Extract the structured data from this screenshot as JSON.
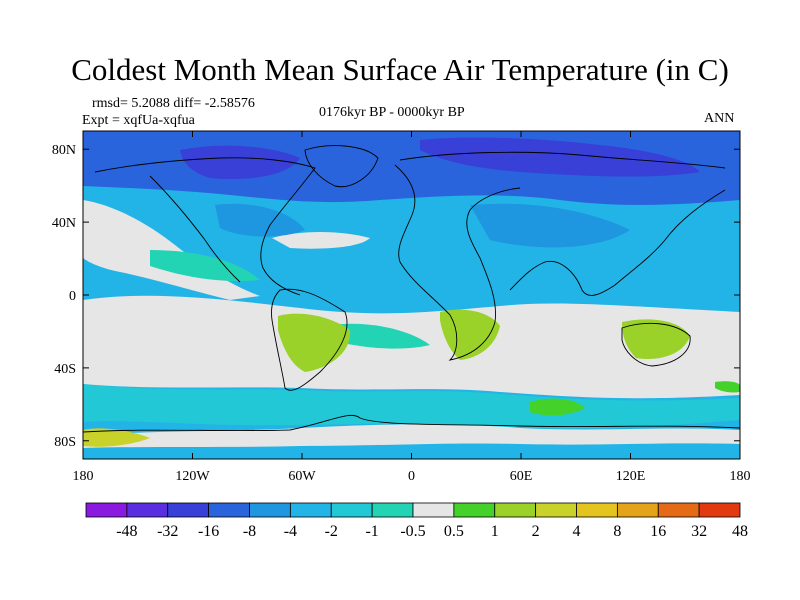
{
  "title": "Coldest Month Mean Surface Air Temperature (in C)",
  "stats": "rmsd= 5.2088  diff= -2.58576",
  "expt": "Expt = xqfUa-xqfua",
  "period": "0176kyr BP - 0000kyr BP",
  "season": "ANN",
  "lat_ticks": [
    {
      "label": "80N",
      "lat": 80
    },
    {
      "label": "40N",
      "lat": 40
    },
    {
      "label": "0",
      "lat": 0
    },
    {
      "label": "40S",
      "lat": -40
    },
    {
      "label": "80S",
      "lat": -80
    }
  ],
  "lon_ticks": [
    {
      "label": "180",
      "lon": -180
    },
    {
      "label": "120W",
      "lon": -120
    },
    {
      "label": "60W",
      "lon": -60
    },
    {
      "label": "0",
      "lon": 0
    },
    {
      "label": "60E",
      "lon": 60
    },
    {
      "label": "120E",
      "lon": 120
    },
    {
      "label": "180",
      "lon": 180
    }
  ],
  "colorbar": {
    "colors": [
      "#8a1ae0",
      "#5a2ee0",
      "#3840d8",
      "#2a64dc",
      "#1e96e0",
      "#22b4e6",
      "#22c8d6",
      "#22d4b4",
      "#e6e6e6",
      "#44d22a",
      "#9ad22a",
      "#c8d22a",
      "#e4c41e",
      "#e4a41a",
      "#e46a16",
      "#e23a10"
    ],
    "labels": [
      "-48",
      "-32",
      "-16",
      "-8",
      "-4",
      "-2",
      "-1",
      "-0.5",
      "0.5",
      "1",
      "2",
      "4",
      "8",
      "16",
      "32",
      "48"
    ]
  },
  "field_colors": {
    "strong_neg": "#3840d8",
    "neg": "#2a64dc",
    "mid_neg": "#1e96e0",
    "light_neg": "#22b4e6",
    "cyan": "#22c8d6",
    "teal": "#22d4b4",
    "neutral": "#e6e6e6",
    "pos1": "#44d22a",
    "pos2": "#9ad22a",
    "pos3": "#c8d22a"
  }
}
